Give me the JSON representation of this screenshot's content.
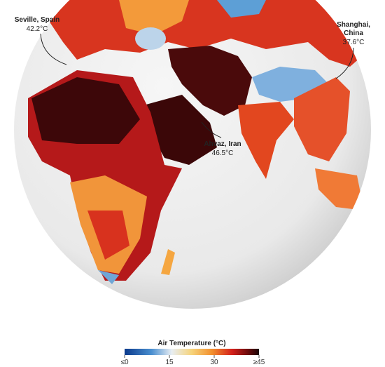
{
  "annotations": [
    {
      "place": "Seville, Spain",
      "temperature": "42.2°C"
    },
    {
      "place": [
        "Shanghai,",
        "China"
      ],
      "temperature": "37.6°C"
    },
    {
      "place": "Ahvaz, Iran",
      "temperature": "46.5°C"
    }
  ],
  "legend": {
    "title": "Air Temperature (°C)",
    "ticks": [
      {
        "value": 0,
        "label": "≤0"
      },
      15,
      30,
      {
        "value": 45,
        "label": "≥45"
      }
    ],
    "range": [
      0,
      45
    ]
  }
}
